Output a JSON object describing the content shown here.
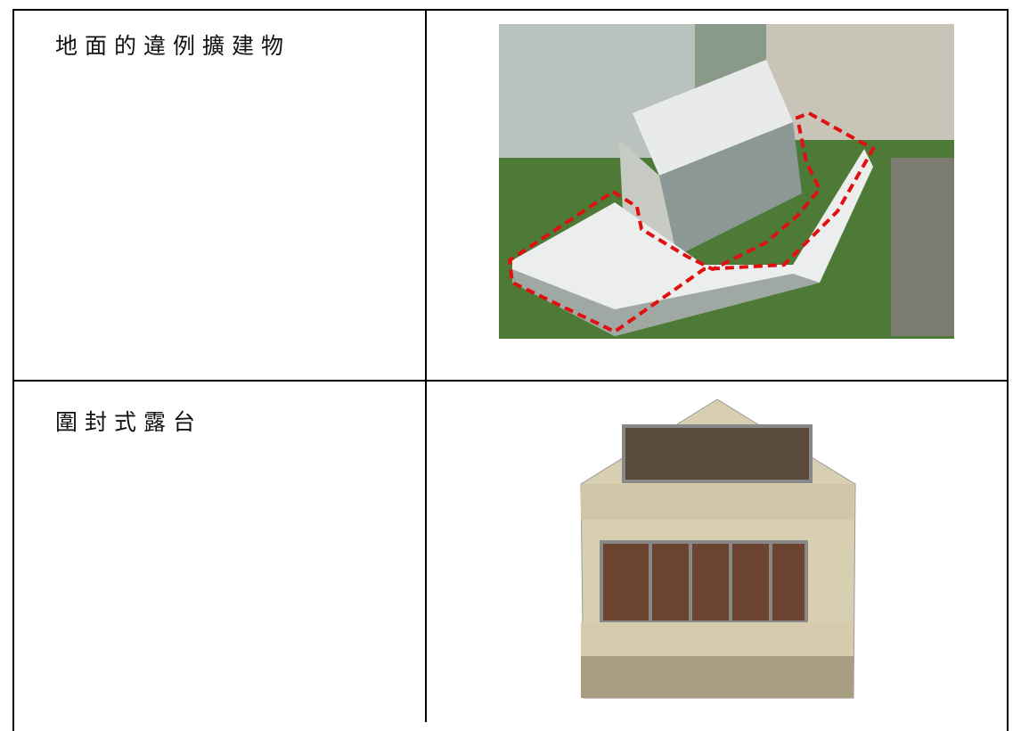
{
  "table": {
    "rows": [
      [
        "地面的違例擴建物"
      ],
      [
        "圍封式露台"
      ]
    ]
  }
}
